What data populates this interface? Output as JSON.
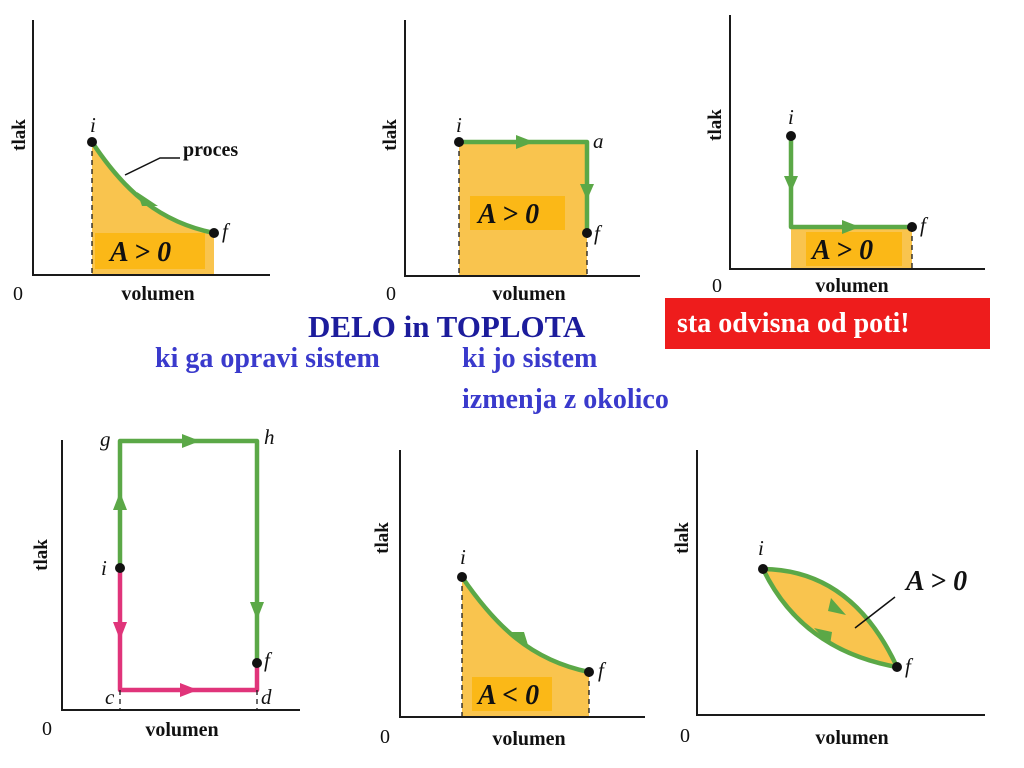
{
  "headline": {
    "delo": "DELO   in TOPLOTA",
    "sub_work": "ki ga opravi sistem",
    "sub_heat_1": "ki jo sistem",
    "sub_heat_2": "izmenja z okolico",
    "path_note": "sta odvisna od poti!"
  },
  "colors": {
    "path_green": "#5ba847",
    "path_magenta": "#e0347a",
    "area_fill": "#f9c44e",
    "label_highlight": "#fbb817",
    "headline_blue": "#1c1c9c",
    "sub_blue": "#3a3acc",
    "note_red": "#ee1c1c"
  },
  "diagrams": [
    {
      "id": "a",
      "ylabel": "tlak",
      "xlabel": "volumen",
      "origin": "0",
      "points": [
        "i",
        "f"
      ],
      "callout": "proces",
      "area_label": "A > 0"
    },
    {
      "id": "b",
      "ylabel": "tlak",
      "xlabel": "volumen",
      "origin": "0",
      "points": [
        "i",
        "a",
        "f"
      ],
      "area_label": "A > 0"
    },
    {
      "id": "c",
      "ylabel": "tlak",
      "xlabel": "volumen",
      "origin": "0",
      "points": [
        "i",
        "f"
      ],
      "area_label": "A > 0"
    },
    {
      "id": "d",
      "ylabel": "tlak",
      "xlabel": "volumen",
      "origin": "0",
      "points": [
        "g",
        "h",
        "i",
        "f",
        "c",
        "d"
      ]
    },
    {
      "id": "e",
      "ylabel": "tlak",
      "xlabel": "volumen",
      "origin": "0",
      "points": [
        "i",
        "f"
      ],
      "area_label": "A < 0"
    },
    {
      "id": "f",
      "ylabel": "tlak",
      "xlabel": "volumen",
      "origin": "0",
      "points": [
        "i",
        "f"
      ],
      "area_label": "A > 0"
    }
  ]
}
